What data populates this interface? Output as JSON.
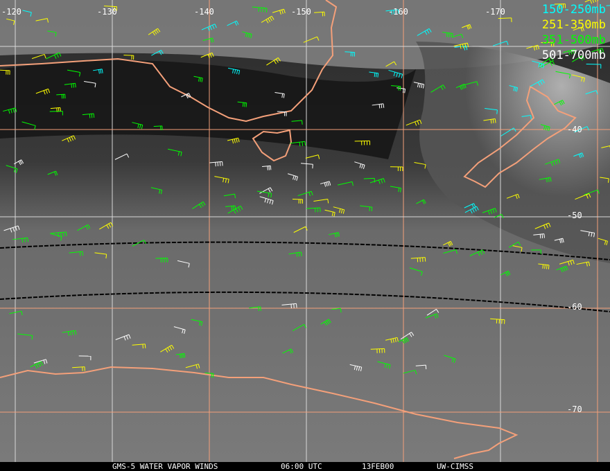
{
  "longitude_labels": [
    "-120",
    "-130",
    "-140",
    "-150",
    "-160",
    "-170"
  ],
  "latitude_labels": [
    "-40",
    "-50",
    "-60",
    "-70"
  ],
  "legend": [
    {
      "label": "150-250mb",
      "color": "#00ffff"
    },
    {
      "label": "251-350mb",
      "color": "#ffff00"
    },
    {
      "label": "351-500mb",
      "color": "#00ff00"
    },
    {
      "label": "501-700mb",
      "color": "#ffffff"
    }
  ],
  "caption": {
    "satellite": "GMS-5 WATER VAPOR WINDS",
    "time": "06:00 UTC",
    "date": "13FEB00",
    "source": "UW-CIMSS"
  },
  "colors": {
    "coastline": "#f4a07a",
    "grid_major": "#f4a07a",
    "grid_minor": "#d8d8d8",
    "terminator": "#000000"
  }
}
